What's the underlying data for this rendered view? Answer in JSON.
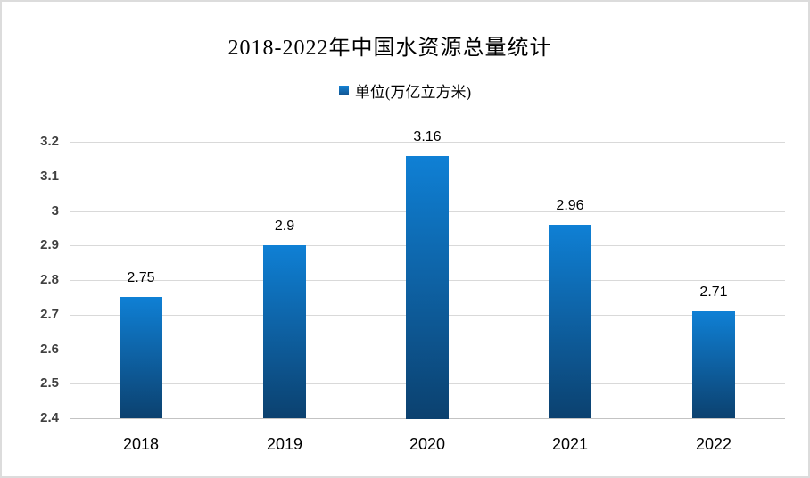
{
  "chart_data": {
    "type": "bar",
    "title": "2018-2022年中国水资源总量统计",
    "legend_label": "单位(万亿立方米)",
    "legend_position": "top-center",
    "categories": [
      "2018",
      "2019",
      "2020",
      "2021",
      "2022"
    ],
    "values": [
      2.75,
      2.9,
      3.16,
      2.96,
      2.71
    ],
    "data_labels": [
      "2.75",
      "2.9",
      "3.16",
      "2.96",
      "2.71"
    ],
    "ylim": [
      2.4,
      3.2
    ],
    "yticks": [
      3.2,
      3.1,
      3.0,
      2.9,
      2.8,
      2.7,
      2.6,
      2.5,
      2.4
    ],
    "ytick_labels": [
      "3.2",
      "3.1",
      "3",
      "2.9",
      "2.8",
      "2.7",
      "2.6",
      "2.5",
      "2.4"
    ],
    "grid": true,
    "xlabel": "",
    "ylabel": "",
    "colors": {
      "bar_gradient_top": "#0f80d5",
      "bar_gradient_bottom": "#0c416f",
      "legend_marker_top": "#1583d5",
      "legend_marker_bottom": "#11528d",
      "gridline": "#d9d9d9",
      "axis_line": "#c3c3c3",
      "ytick_text": "#404040",
      "xtick_text": "#000000",
      "data_label_text": "#000000",
      "title_text": "#000000"
    }
  }
}
